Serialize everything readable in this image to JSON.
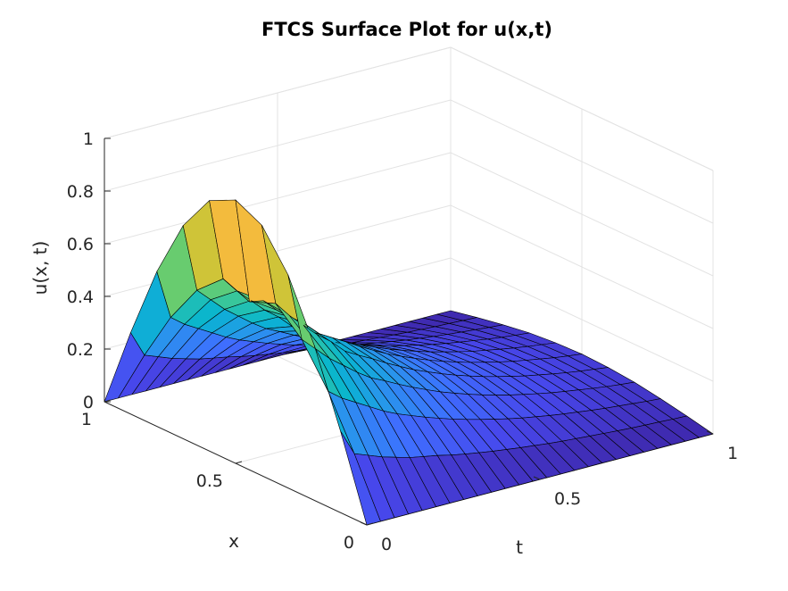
{
  "chart_data": {
    "type": "surface",
    "title": "FTCS Surface Plot for u(x,t)",
    "xlabel": "x",
    "ylabel": "t",
    "zlabel": "u(x, t)",
    "xlim": [
      0,
      1
    ],
    "ylim": [
      0,
      1
    ],
    "zlim": [
      0,
      1
    ],
    "x_ticks": [
      {
        "value": 0,
        "label": "0"
      },
      {
        "value": 0.5,
        "label": "0.5"
      },
      {
        "value": 1,
        "label": "1"
      }
    ],
    "t_ticks": [
      {
        "value": 0,
        "label": "0"
      },
      {
        "value": 0.5,
        "label": "0.5"
      },
      {
        "value": 1,
        "label": "1"
      }
    ],
    "z_ticks": [
      {
        "value": 0,
        "label": "0"
      },
      {
        "value": 0.2,
        "label": "0.2"
      },
      {
        "value": 0.4,
        "label": "0.4"
      },
      {
        "value": 0.6,
        "label": "0.6"
      },
      {
        "value": 0.8,
        "label": "0.8"
      },
      {
        "value": 1,
        "label": "1"
      }
    ],
    "grid": true,
    "colormap": "parula",
    "surface_x": [
      0,
      0.1,
      0.2,
      0.3,
      0.4,
      0.5,
      0.6,
      0.7,
      0.8,
      0.9,
      1.0
    ],
    "surface_t": [
      0,
      0.04,
      0.08,
      0.12,
      0.16,
      0.2,
      0.24,
      0.28,
      0.32,
      0.36,
      0.4,
      0.44,
      0.48,
      0.52,
      0.56,
      0.6,
      0.64,
      0.68,
      0.72,
      0.76,
      0.8,
      0.84,
      0.88,
      0.92,
      0.96,
      1.0
    ],
    "surface_u": [
      [
        0,
        0.309,
        0.588,
        0.809,
        0.951,
        1.0,
        0.951,
        0.809,
        0.588,
        0.309,
        0
      ],
      [
        0,
        0.21,
        0.4,
        0.55,
        0.64,
        0.6,
        0.64,
        0.55,
        0.4,
        0.21,
        0
      ],
      [
        0,
        0.19,
        0.36,
        0.5,
        0.58,
        0.59,
        0.58,
        0.5,
        0.36,
        0.19,
        0
      ],
      [
        0,
        0.17,
        0.33,
        0.45,
        0.53,
        0.54,
        0.53,
        0.45,
        0.33,
        0.17,
        0
      ],
      [
        0,
        0.155,
        0.3,
        0.41,
        0.48,
        0.5,
        0.48,
        0.41,
        0.3,
        0.155,
        0
      ],
      [
        0,
        0.14,
        0.27,
        0.37,
        0.44,
        0.46,
        0.44,
        0.37,
        0.27,
        0.14,
        0
      ],
      [
        0,
        0.13,
        0.245,
        0.335,
        0.39,
        0.41,
        0.39,
        0.335,
        0.245,
        0.13,
        0
      ],
      [
        0,
        0.12,
        0.225,
        0.31,
        0.36,
        0.38,
        0.36,
        0.31,
        0.225,
        0.12,
        0
      ],
      [
        0,
        0.108,
        0.205,
        0.283,
        0.333,
        0.35,
        0.333,
        0.283,
        0.205,
        0.108,
        0
      ],
      [
        0,
        0.098,
        0.187,
        0.258,
        0.303,
        0.319,
        0.303,
        0.258,
        0.187,
        0.098,
        0
      ],
      [
        0,
        0.089,
        0.17,
        0.235,
        0.276,
        0.29,
        0.276,
        0.235,
        0.17,
        0.089,
        0
      ],
      [
        0,
        0.081,
        0.155,
        0.213,
        0.25,
        0.263,
        0.25,
        0.213,
        0.155,
        0.081,
        0
      ],
      [
        0,
        0.074,
        0.141,
        0.194,
        0.228,
        0.24,
        0.228,
        0.194,
        0.141,
        0.074,
        0
      ],
      [
        0,
        0.067,
        0.128,
        0.176,
        0.207,
        0.218,
        0.207,
        0.176,
        0.128,
        0.067,
        0
      ],
      [
        0,
        0.061,
        0.116,
        0.16,
        0.188,
        0.198,
        0.188,
        0.16,
        0.116,
        0.061,
        0
      ],
      [
        0,
        0.055,
        0.105,
        0.145,
        0.171,
        0.18,
        0.171,
        0.145,
        0.105,
        0.055,
        0
      ],
      [
        0,
        0.05,
        0.096,
        0.132,
        0.155,
        0.163,
        0.155,
        0.132,
        0.096,
        0.05,
        0
      ],
      [
        0,
        0.046,
        0.087,
        0.12,
        0.141,
        0.148,
        0.141,
        0.12,
        0.087,
        0.046,
        0
      ],
      [
        0,
        0.042,
        0.079,
        0.109,
        0.128,
        0.135,
        0.128,
        0.109,
        0.079,
        0.042,
        0
      ],
      [
        0,
        0.038,
        0.072,
        0.099,
        0.116,
        0.122,
        0.116,
        0.099,
        0.072,
        0.038,
        0
      ],
      [
        0,
        0.034,
        0.065,
        0.09,
        0.106,
        0.111,
        0.106,
        0.09,
        0.065,
        0.034,
        0
      ],
      [
        0,
        0.031,
        0.059,
        0.082,
        0.096,
        0.101,
        0.096,
        0.082,
        0.059,
        0.031,
        0
      ],
      [
        0,
        0.028,
        0.054,
        0.074,
        0.087,
        0.092,
        0.087,
        0.074,
        0.054,
        0.028,
        0
      ],
      [
        0,
        0.026,
        0.049,
        0.067,
        0.079,
        0.083,
        0.079,
        0.067,
        0.049,
        0.026,
        0
      ],
      [
        0,
        0.023,
        0.044,
        0.061,
        0.072,
        0.076,
        0.072,
        0.061,
        0.044,
        0.023,
        0
      ],
      [
        0,
        0.021,
        0.04,
        0.056,
        0.065,
        0.069,
        0.065,
        0.056,
        0.04,
        0.021,
        0
      ]
    ],
    "colors": {
      "background": "#ffffff",
      "axis": "#262626",
      "grid": "#e3e3e3",
      "edge": "#000000"
    }
  }
}
